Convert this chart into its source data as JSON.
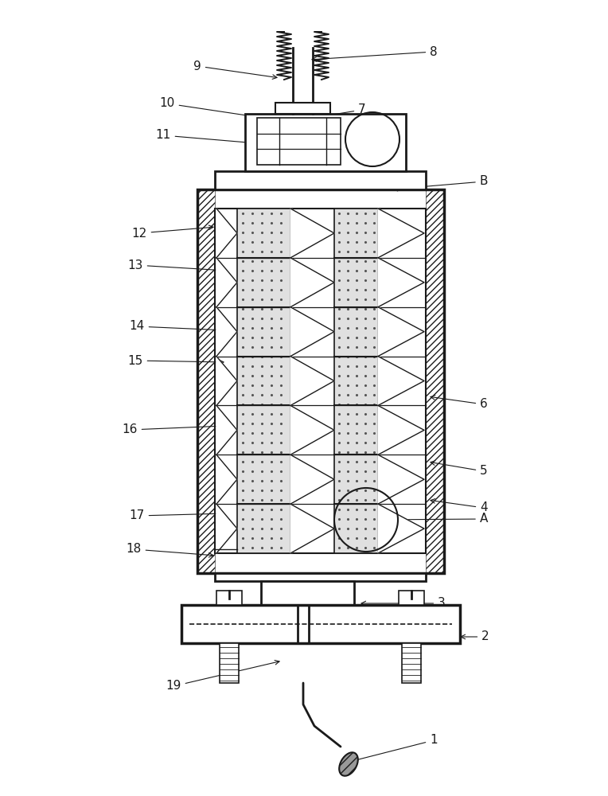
{
  "fig_width": 7.64,
  "fig_height": 10.0,
  "dpi": 100,
  "bg_color": "#ffffff",
  "line_color": "#1a1a1a"
}
